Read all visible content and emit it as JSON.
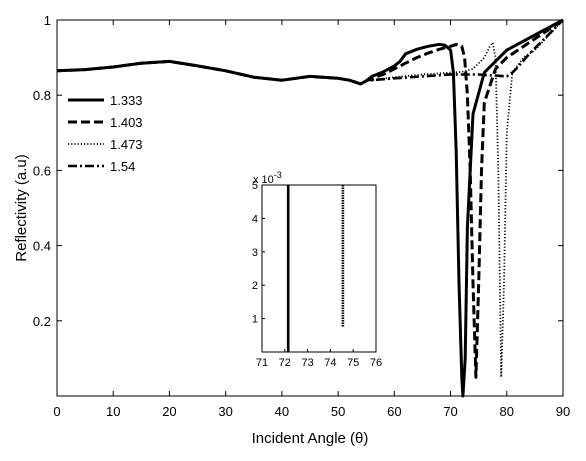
{
  "chart_data": [
    {
      "type": "line",
      "title": "",
      "xlabel": "Incident Angle (θ)",
      "ylabel": "Reflectivity (a.u)",
      "xlim": [
        0,
        90
      ],
      "ylim": [
        0,
        1
      ],
      "xticks": [
        "0",
        "10",
        "20",
        "30",
        "40",
        "50",
        "60",
        "70",
        "80",
        "90"
      ],
      "yticks": [
        "0.2",
        "0.4",
        "0.6",
        "0.8",
        "1"
      ],
      "grid": false,
      "legend_position": "upper-left",
      "series": [
        {
          "name": "1.333",
          "style": "solid",
          "x": [
            0,
            5,
            10,
            15,
            20,
            25,
            30,
            35,
            40,
            45,
            50,
            52,
            54,
            55,
            56,
            58,
            60,
            61,
            62,
            64,
            66,
            68,
            69,
            70,
            70.5,
            71,
            71.5,
            72,
            72.2,
            72.6,
            73,
            74,
            76,
            80,
            85,
            90
          ],
          "y": [
            0.865,
            0.868,
            0.875,
            0.885,
            0.89,
            0.878,
            0.865,
            0.848,
            0.84,
            0.85,
            0.845,
            0.84,
            0.83,
            0.838,
            0.85,
            0.862,
            0.878,
            0.89,
            0.91,
            0.922,
            0.93,
            0.935,
            0.933,
            0.92,
            0.86,
            0.65,
            0.3,
            0.05,
            0.0,
            0.1,
            0.45,
            0.75,
            0.86,
            0.92,
            0.96,
            1.0
          ]
        },
        {
          "name": "1.403",
          "style": "dashed",
          "x": [
            0,
            5,
            10,
            15,
            20,
            25,
            30,
            35,
            40,
            45,
            50,
            52,
            54,
            55,
            56,
            58,
            60,
            62,
            64,
            66,
            68,
            70,
            71,
            72,
            72.5,
            73,
            73.5,
            74,
            74.5,
            75,
            75.5,
            76,
            78,
            80,
            85,
            90
          ],
          "y": [
            0.865,
            0.868,
            0.875,
            0.885,
            0.89,
            0.878,
            0.865,
            0.848,
            0.84,
            0.85,
            0.845,
            0.84,
            0.83,
            0.838,
            0.845,
            0.855,
            0.87,
            0.885,
            0.9,
            0.912,
            0.922,
            0.93,
            0.935,
            0.93,
            0.9,
            0.8,
            0.6,
            0.3,
            0.05,
            0.3,
            0.6,
            0.78,
            0.87,
            0.9,
            0.95,
            1.0
          ]
        },
        {
          "name": "1.473",
          "style": "dotted",
          "x": [
            0,
            5,
            10,
            15,
            20,
            25,
            30,
            35,
            40,
            45,
            50,
            52,
            54,
            55,
            56,
            60,
            65,
            70,
            72,
            74,
            76,
            77,
            77.5,
            78,
            78.5,
            79,
            79.5,
            80,
            81,
            83,
            85,
            90
          ],
          "y": [
            0.865,
            0.868,
            0.875,
            0.885,
            0.89,
            0.878,
            0.865,
            0.848,
            0.84,
            0.85,
            0.845,
            0.84,
            0.83,
            0.838,
            0.84,
            0.848,
            0.855,
            0.86,
            0.862,
            0.87,
            0.9,
            0.93,
            0.94,
            0.9,
            0.6,
            0.05,
            0.3,
            0.7,
            0.86,
            0.9,
            0.92,
            1.0
          ]
        },
        {
          "name": "1.54",
          "style": "dashdot",
          "x": [
            0,
            5,
            10,
            15,
            20,
            25,
            30,
            35,
            40,
            45,
            50,
            52,
            54,
            55,
            56,
            60,
            65,
            70,
            75,
            78,
            80,
            81,
            82,
            84,
            86,
            88,
            90
          ],
          "y": [
            0.865,
            0.868,
            0.875,
            0.885,
            0.89,
            0.878,
            0.865,
            0.848,
            0.84,
            0.85,
            0.845,
            0.84,
            0.83,
            0.838,
            0.84,
            0.845,
            0.85,
            0.855,
            0.855,
            0.852,
            0.85,
            0.86,
            0.875,
            0.91,
            0.94,
            0.97,
            1.0
          ]
        }
      ]
    },
    {
      "type": "line",
      "title": "",
      "xlabel": "",
      "ylabel": "",
      "xlim": [
        71,
        76
      ],
      "ylim": [
        0,
        0.005
      ],
      "xticks": [
        "71",
        "72",
        "73",
        "74",
        "75",
        "76"
      ],
      "yticks": [
        "1",
        "2",
        "3",
        "4",
        "5"
      ],
      "y_multiplier": "x 10",
      "y_multiplier_exp": "-3",
      "series": [
        {
          "style": "solid",
          "x": [
            72.15,
            72.15
          ],
          "y": [
            0.005,
            0.0
          ]
        },
        {
          "style": "dashed",
          "x": [
            74.55,
            74.55
          ],
          "y": [
            0.005,
            0.00075
          ]
        }
      ]
    }
  ]
}
